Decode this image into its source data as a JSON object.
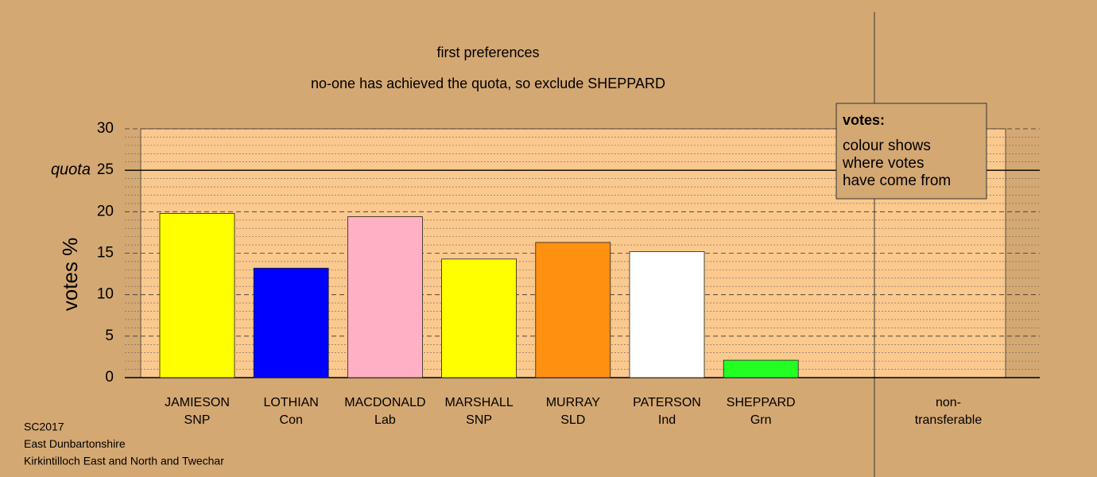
{
  "chart_data": {
    "type": "bar",
    "title": "first preferences",
    "subtitle": "no-one has achieved the quota, so exclude SHEPPARD",
    "y_label": "votes %",
    "categories": [
      [
        "JAMIESON",
        "SNP"
      ],
      [
        "LOTHIAN",
        "Con"
      ],
      [
        "MACDONALD",
        "Lab"
      ],
      [
        "MARSHALL",
        "SNP"
      ],
      [
        "MURRAY",
        "SLD"
      ],
      [
        "PATERSON",
        "Ind"
      ],
      [
        "SHEPPARD",
        "Grn"
      ],
      [
        "non-",
        "transferable"
      ]
    ],
    "values": [
      19.8,
      13.2,
      19.4,
      14.3,
      16.3,
      15.2,
      2.1,
      null
    ],
    "colors": [
      "#ffff00",
      "#0000ff",
      "#ffb0c4",
      "#ffff00",
      "#ff9010",
      "#ffffff",
      "#22ff22",
      null
    ],
    "ylim": [
      0,
      30
    ],
    "yticks": [
      0,
      5,
      10,
      15,
      20,
      25,
      30
    ],
    "minor_yticks": [
      1,
      2,
      3,
      4,
      6,
      7,
      8,
      9,
      11,
      12,
      13,
      14,
      16,
      17,
      18,
      19,
      21,
      22,
      23,
      24,
      26,
      27,
      28,
      29
    ],
    "quota": {
      "label": "quota",
      "value": 25
    },
    "legend_title": "votes:",
    "legend_lines": [
      "colour shows",
      "where votes",
      "have come from"
    ],
    "footer": [
      "SC2017",
      "East Dunbartonshire",
      "Kirkintilloch East and North and Twechar"
    ],
    "grid": true
  }
}
